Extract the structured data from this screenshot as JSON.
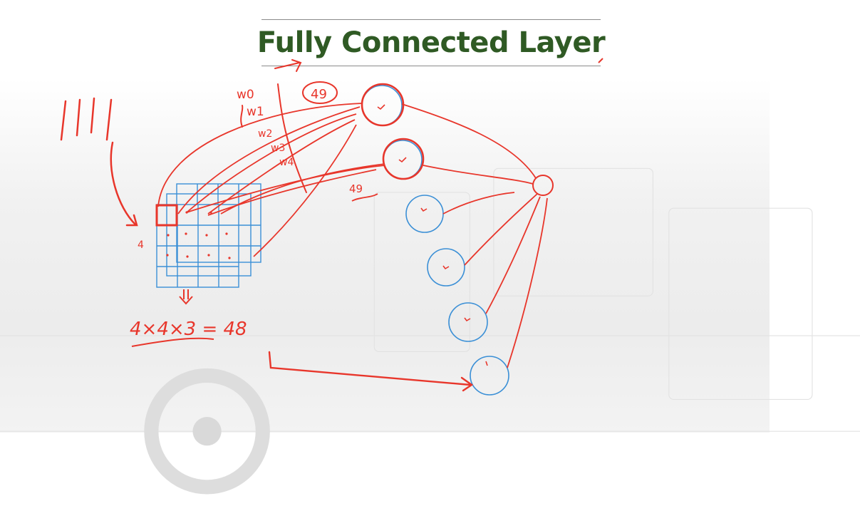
{
  "slide": {
    "title": "Fully Connected Layer",
    "title_color": "#2f5a24"
  },
  "annotations": {
    "ink_color": "#e8362b",
    "node_color": "#3a8fd6",
    "weights": [
      "w0",
      "w1",
      "w2",
      "w3",
      "w4"
    ],
    "count_label_top": "49",
    "count_label_mid": "49",
    "grid_side_label": "4",
    "equation": "4×4×3 = 48"
  }
}
